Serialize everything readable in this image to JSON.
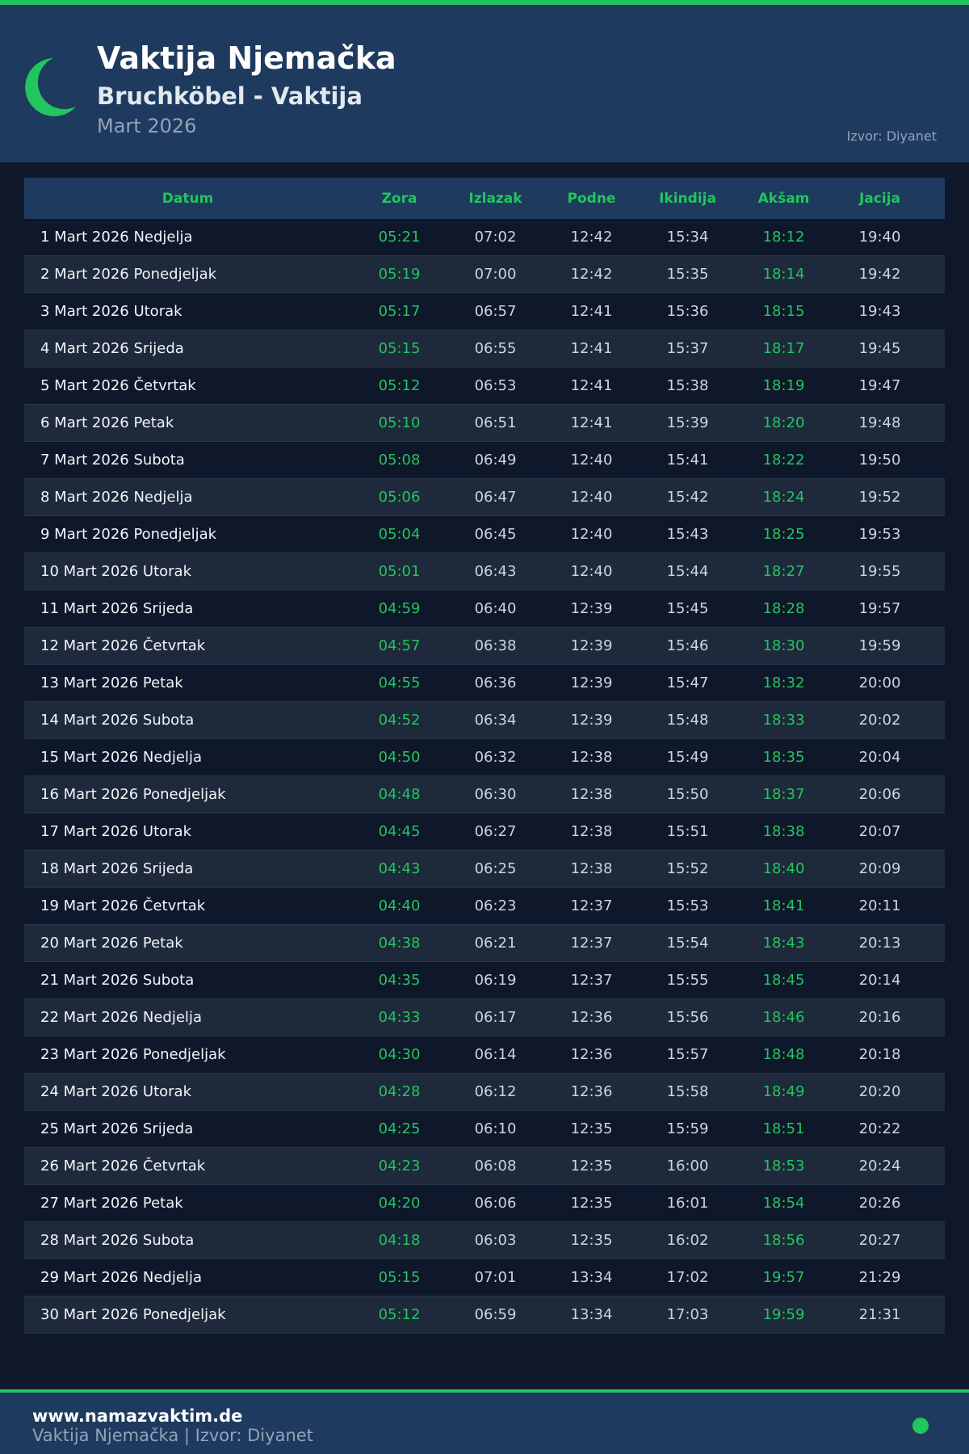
{
  "colors": {
    "accent": "#22c55e",
    "header_bg": "#1e3a5f",
    "page_bg": "#0f172a",
    "row_alt": "#1e293b"
  },
  "header": {
    "icon": "crescent-moon-icon",
    "title": "Vaktija Njemačka",
    "subtitle": "Bruchköbel - Vaktija",
    "month": "Mart 2026",
    "source": "Izvor: Diyanet"
  },
  "table": {
    "columns": [
      "Datum",
      "Zora",
      "Izlazak",
      "Podne",
      "Ikindija",
      "Akšam",
      "Jacija"
    ],
    "rows": [
      [
        "1 Mart 2026 Nedjelja",
        "05:21",
        "07:02",
        "12:42",
        "15:34",
        "18:12",
        "19:40"
      ],
      [
        "2 Mart 2026 Ponedjeljak",
        "05:19",
        "07:00",
        "12:42",
        "15:35",
        "18:14",
        "19:42"
      ],
      [
        "3 Mart 2026 Utorak",
        "05:17",
        "06:57",
        "12:41",
        "15:36",
        "18:15",
        "19:43"
      ],
      [
        "4 Mart 2026 Srijeda",
        "05:15",
        "06:55",
        "12:41",
        "15:37",
        "18:17",
        "19:45"
      ],
      [
        "5 Mart 2026 Četvrtak",
        "05:12",
        "06:53",
        "12:41",
        "15:38",
        "18:19",
        "19:47"
      ],
      [
        "6 Mart 2026 Petak",
        "05:10",
        "06:51",
        "12:41",
        "15:39",
        "18:20",
        "19:48"
      ],
      [
        "7 Mart 2026 Subota",
        "05:08",
        "06:49",
        "12:40",
        "15:41",
        "18:22",
        "19:50"
      ],
      [
        "8 Mart 2026 Nedjelja",
        "05:06",
        "06:47",
        "12:40",
        "15:42",
        "18:24",
        "19:52"
      ],
      [
        "9 Mart 2026 Ponedjeljak",
        "05:04",
        "06:45",
        "12:40",
        "15:43",
        "18:25",
        "19:53"
      ],
      [
        "10 Mart 2026 Utorak",
        "05:01",
        "06:43",
        "12:40",
        "15:44",
        "18:27",
        "19:55"
      ],
      [
        "11 Mart 2026 Srijeda",
        "04:59",
        "06:40",
        "12:39",
        "15:45",
        "18:28",
        "19:57"
      ],
      [
        "12 Mart 2026 Četvrtak",
        "04:57",
        "06:38",
        "12:39",
        "15:46",
        "18:30",
        "19:59"
      ],
      [
        "13 Mart 2026 Petak",
        "04:55",
        "06:36",
        "12:39",
        "15:47",
        "18:32",
        "20:00"
      ],
      [
        "14 Mart 2026 Subota",
        "04:52",
        "06:34",
        "12:39",
        "15:48",
        "18:33",
        "20:02"
      ],
      [
        "15 Mart 2026 Nedjelja",
        "04:50",
        "06:32",
        "12:38",
        "15:49",
        "18:35",
        "20:04"
      ],
      [
        "16 Mart 2026 Ponedjeljak",
        "04:48",
        "06:30",
        "12:38",
        "15:50",
        "18:37",
        "20:06"
      ],
      [
        "17 Mart 2026 Utorak",
        "04:45",
        "06:27",
        "12:38",
        "15:51",
        "18:38",
        "20:07"
      ],
      [
        "18 Mart 2026 Srijeda",
        "04:43",
        "06:25",
        "12:38",
        "15:52",
        "18:40",
        "20:09"
      ],
      [
        "19 Mart 2026 Četvrtak",
        "04:40",
        "06:23",
        "12:37",
        "15:53",
        "18:41",
        "20:11"
      ],
      [
        "20 Mart 2026 Petak",
        "04:38",
        "06:21",
        "12:37",
        "15:54",
        "18:43",
        "20:13"
      ],
      [
        "21 Mart 2026 Subota",
        "04:35",
        "06:19",
        "12:37",
        "15:55",
        "18:45",
        "20:14"
      ],
      [
        "22 Mart 2026 Nedjelja",
        "04:33",
        "06:17",
        "12:36",
        "15:56",
        "18:46",
        "20:16"
      ],
      [
        "23 Mart 2026 Ponedjeljak",
        "04:30",
        "06:14",
        "12:36",
        "15:57",
        "18:48",
        "20:18"
      ],
      [
        "24 Mart 2026 Utorak",
        "04:28",
        "06:12",
        "12:36",
        "15:58",
        "18:49",
        "20:20"
      ],
      [
        "25 Mart 2026 Srijeda",
        "04:25",
        "06:10",
        "12:35",
        "15:59",
        "18:51",
        "20:22"
      ],
      [
        "26 Mart 2026 Četvrtak",
        "04:23",
        "06:08",
        "12:35",
        "16:00",
        "18:53",
        "20:24"
      ],
      [
        "27 Mart 2026 Petak",
        "04:20",
        "06:06",
        "12:35",
        "16:01",
        "18:54",
        "20:26"
      ],
      [
        "28 Mart 2026 Subota",
        "04:18",
        "06:03",
        "12:35",
        "16:02",
        "18:56",
        "20:27"
      ],
      [
        "29 Mart 2026 Nedjelja",
        "05:15",
        "07:01",
        "13:34",
        "17:02",
        "19:57",
        "21:29"
      ],
      [
        "30 Mart 2026 Ponedjeljak",
        "05:12",
        "06:59",
        "13:34",
        "17:03",
        "19:59",
        "21:31"
      ]
    ]
  },
  "footer": {
    "website": "www.namazvaktim.de",
    "subtitle": "Vaktija Njemačka | Izvor: Diyanet",
    "icon": "status-dot-icon"
  }
}
